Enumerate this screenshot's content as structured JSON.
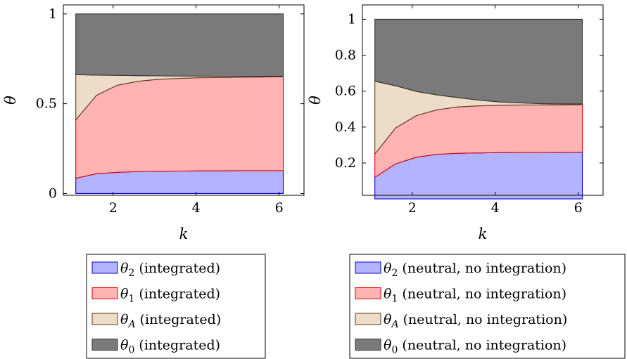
{
  "chart_data": [
    {
      "type": "area",
      "stacked": true,
      "xlabel": "k",
      "ylabel": "θ",
      "xlim": [
        0.8,
        6.6
      ],
      "ylim": [
        -0.01,
        1.05
      ],
      "xticks": [
        "2",
        "4",
        "6"
      ],
      "xtick_values": [
        2,
        4,
        6
      ],
      "yticks": [
        "0",
        "0.5",
        "1"
      ],
      "ytick_values": [
        0,
        0.5,
        1
      ],
      "x": [
        1.1,
        1.6,
        2.1,
        2.6,
        3.1,
        3.6,
        4.1,
        4.6,
        5.1,
        5.6,
        6.1
      ],
      "grid": false,
      "legend_position": "below",
      "series": [
        {
          "name": "θ2 (integrated)",
          "sym": "θ",
          "sub": "2",
          "rest": " (integrated)",
          "color": "#b3b3ff",
          "stroke": "#0000cc",
          "values": [
            0.085,
            0.11,
            0.118,
            0.122,
            0.124,
            0.125,
            0.126,
            0.126,
            0.127,
            0.127,
            0.127
          ]
        },
        {
          "name": "θ1 (integrated)",
          "sym": "θ",
          "sub": "1",
          "rest": " (integrated)",
          "color": "#ffb3b3",
          "stroke": "#e00000",
          "values": [
            0.325,
            0.437,
            0.485,
            0.503,
            0.512,
            0.516,
            0.519,
            0.52,
            0.521,
            0.522,
            0.523
          ]
        },
        {
          "name": "θA (integrated)",
          "sym": "θ",
          "sub": "A",
          "rest": " (integrated)",
          "color": "#ecdcc8",
          "stroke": "#5a3a1a",
          "values": [
            0.252,
            0.112,
            0.055,
            0.031,
            0.019,
            0.013,
            0.009,
            0.007,
            0.005,
            0.004,
            0.003
          ]
        },
        {
          "name": "θ0 (integrated)",
          "sym": "θ",
          "sub": "0",
          "rest": " (integrated)",
          "color": "#7a7a7a",
          "stroke": "#333333",
          "values": [
            0.338,
            0.341,
            0.342,
            0.344,
            0.345,
            0.346,
            0.346,
            0.347,
            0.347,
            0.347,
            0.347
          ]
        }
      ]
    },
    {
      "type": "area",
      "stacked": true,
      "xlabel": "k",
      "ylabel": "θ",
      "xlim": [
        0.8,
        6.6
      ],
      "ylim": [
        0.02,
        1.08
      ],
      "xticks": [
        "2",
        "4",
        "6"
      ],
      "xtick_values": [
        2,
        4,
        6
      ],
      "yticks": [
        "0.2",
        "0.4",
        "0.6",
        "0.8",
        "1"
      ],
      "ytick_values": [
        0.2,
        0.4,
        0.6,
        0.8,
        1
      ],
      "x": [
        1.1,
        1.6,
        2.1,
        2.6,
        3.1,
        3.6,
        4.1,
        4.6,
        5.1,
        5.6,
        6.1
      ],
      "grid": false,
      "legend_position": "below",
      "series": [
        {
          "name": "θ2 (neutral, no integration)",
          "sym": "θ",
          "sub": "2",
          "rest": " (neutral, no integration)",
          "color": "#b3b3ff",
          "stroke": "#0000cc",
          "values": [
            0.12,
            0.195,
            0.232,
            0.248,
            0.254,
            0.256,
            0.258,
            0.259,
            0.259,
            0.26,
            0.26
          ]
        },
        {
          "name": "θ1 (neutral, no integration)",
          "sym": "θ",
          "sub": "1",
          "rest": " (neutral, no integration)",
          "color": "#ffb3b3",
          "stroke": "#e00000",
          "values": [
            0.13,
            0.2,
            0.232,
            0.248,
            0.258,
            0.262,
            0.263,
            0.264,
            0.264,
            0.264,
            0.265
          ]
        },
        {
          "name": "θA (neutral, no integration)",
          "sym": "θ",
          "sub": "A",
          "rest": " (neutral, no integration)",
          "color": "#ecdcc8",
          "stroke": "#5a3a1a",
          "values": [
            0.405,
            0.235,
            0.134,
            0.083,
            0.052,
            0.032,
            0.019,
            0.012,
            0.007,
            0.005,
            0.004
          ]
        },
        {
          "name": "θ0 (neutral, no integration)",
          "sym": "θ",
          "sub": "0",
          "rest": " (neutral, no integration)",
          "color": "#7a7a7a",
          "stroke": "#333333",
          "values": [
            0.345,
            0.37,
            0.402,
            0.421,
            0.436,
            0.45,
            0.46,
            0.465,
            0.47,
            0.471,
            0.471
          ]
        }
      ]
    }
  ]
}
